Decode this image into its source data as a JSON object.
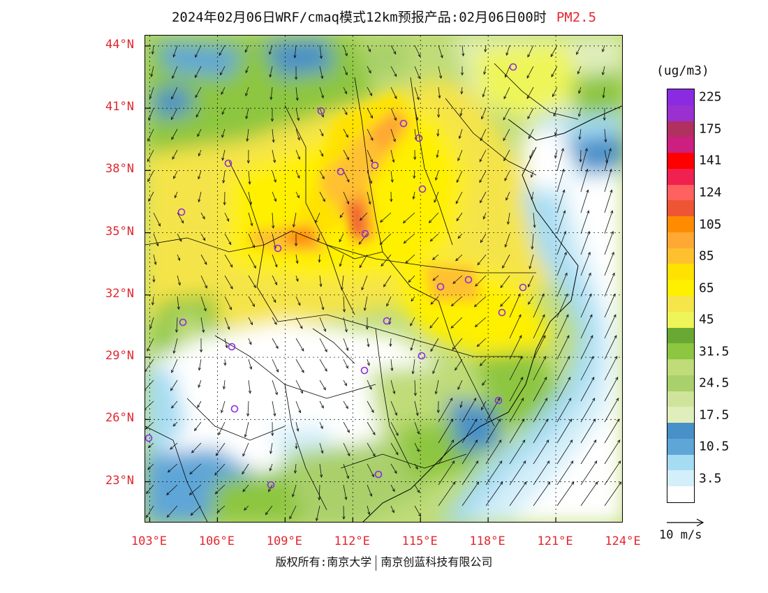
{
  "title": {
    "text": "2024年02月06日WRF/cmaq模式12km预报产品:02月06日00时",
    "species": "PM2.5"
  },
  "colors": {
    "species_color": "#e2262f",
    "tick_color": "#e2262f"
  },
  "map": {
    "lat_ticks": [
      "44°N",
      "41°N",
      "38°N",
      "35°N",
      "32°N",
      "29°N",
      "26°N",
      "23°N"
    ],
    "lon_ticks": [
      "103°E",
      "106°E",
      "109°E",
      "112°E",
      "115°E",
      "118°E",
      "121°E",
      "124°E"
    ],
    "lat_range": [
      21,
      44.5
    ],
    "lon_range": [
      102.8,
      124
    ],
    "station_icon": "circle-marker-icon"
  },
  "legend": {
    "unit": "(ug/m3)",
    "levels": [
      {
        "color": "#8a2be2",
        "label": "225"
      },
      {
        "color": "#9b30d0",
        "label": ""
      },
      {
        "color": "#b03060",
        "label": "175"
      },
      {
        "color": "#cc1f80",
        "label": ""
      },
      {
        "color": "#ff0000",
        "label": "141"
      },
      {
        "color": "#f0204f",
        "label": ""
      },
      {
        "color": "#ff6060",
        "label": "124"
      },
      {
        "color": "#ee5533",
        "label": ""
      },
      {
        "color": "#ff8c00",
        "label": "105"
      },
      {
        "color": "#ffa833",
        "label": ""
      },
      {
        "color": "#ffc030",
        "label": "85"
      },
      {
        "color": "#ffe200",
        "label": ""
      },
      {
        "color": "#fff000",
        "label": "65"
      },
      {
        "color": "#f5e44a",
        "label": ""
      },
      {
        "color": "#eef558",
        "label": "45"
      },
      {
        "color": "#6aa834",
        "label": ""
      },
      {
        "color": "#8dc640",
        "label": "31.5"
      },
      {
        "color": "#bfdc78",
        "label": ""
      },
      {
        "color": "#a9d06a",
        "label": "24.5"
      },
      {
        "color": "#cfe49a",
        "label": ""
      },
      {
        "color": "#e0eebb",
        "label": "17.5"
      },
      {
        "color": "#4890c8",
        "label": ""
      },
      {
        "color": "#5ea6d8",
        "label": "10.5"
      },
      {
        "color": "#a6dcf2",
        "label": ""
      },
      {
        "color": "#d4eff9",
        "label": "3.5"
      },
      {
        "color": "#ffffff",
        "label": ""
      }
    ]
  },
  "wind_reference": {
    "label": "10 m/s",
    "arrow_icon": "wind-reference-arrow-icon"
  },
  "footer": {
    "left": "版权所有:南京大学",
    "right": "南京创蓝科技有限公司"
  }
}
